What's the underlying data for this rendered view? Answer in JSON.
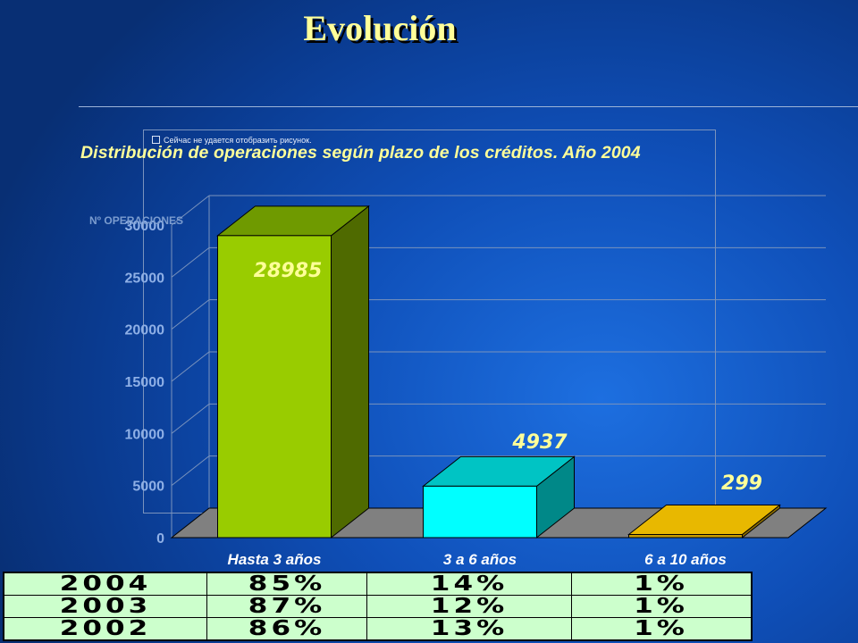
{
  "slide": {
    "title": "Evolución",
    "broken_image_text": "Сейчас не удается отобразить рисунок."
  },
  "chart_data": {
    "type": "bar",
    "title": "Distribución de operaciones según plazo de los créditos. Año 2004",
    "ylabel": "Nº OPERACIONES",
    "xlabel": "",
    "ylim": [
      0,
      30000
    ],
    "yticks": [
      "0",
      "5000",
      "10000",
      "15000",
      "20000",
      "25000",
      "30000"
    ],
    "grid": true,
    "style": "3d",
    "categories": [
      "Hasta 3 años",
      "3 a 6 años",
      "6 a 10 años"
    ],
    "values": [
      28985,
      4937,
      299
    ],
    "data_labels": [
      "28985",
      "4937",
      "299"
    ],
    "colors": {
      "bars_front": [
        "#99cc00",
        "#00ffff",
        "#c89c00"
      ],
      "bars_top": [
        "#6f9a00",
        "#00c4c4",
        "#e8b800"
      ],
      "bars_side": [
        "#4f6a00",
        "#008888",
        "#8c6d00"
      ],
      "floor": "#808080",
      "data_label": "#ffff99",
      "tick_label": "#8fb0e6",
      "category_label": "#ffffff"
    }
  },
  "table": {
    "rows": [
      [
        "2004",
        "85%",
        "14%",
        "1%"
      ],
      [
        "2003",
        "87%",
        "12%",
        "1%"
      ],
      [
        "2002",
        "86%",
        "13%",
        "1%"
      ]
    ]
  }
}
